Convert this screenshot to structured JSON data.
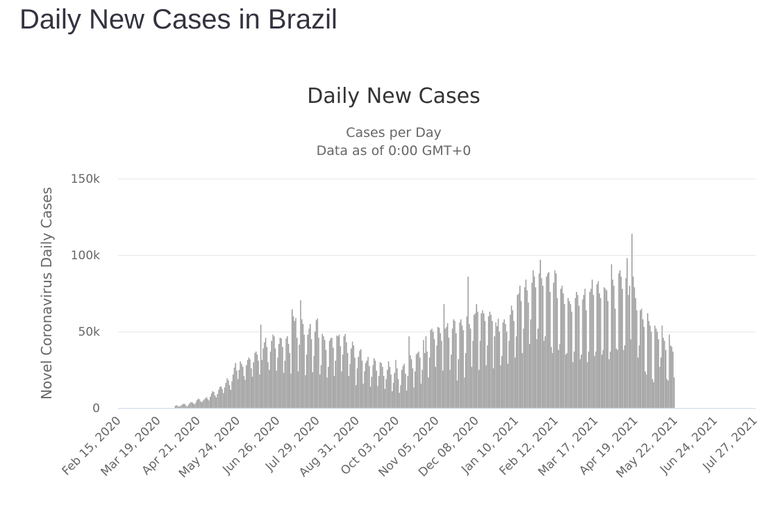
{
  "page": {
    "heading": "Daily New Cases in Brazil"
  },
  "chart_data": {
    "type": "bar",
    "title": "Daily New Cases",
    "subtitle": [
      "Cases per Day",
      "Data as of 0:00 GMT+0"
    ],
    "ylabel": "Novel Coronavirus Daily Cases",
    "xlabel": "",
    "ylim": [
      0,
      150000
    ],
    "yticks": [
      {
        "value": 0,
        "label": "0"
      },
      {
        "value": 50000,
        "label": "50k"
      },
      {
        "value": 100000,
        "label": "100k"
      },
      {
        "value": 150000,
        "label": "150k"
      }
    ],
    "xticks": [
      {
        "day": 0,
        "label": "Feb 15, 2020"
      },
      {
        "day": 33,
        "label": "Mar 19, 2020"
      },
      {
        "day": 66,
        "label": "Apr 21, 2020"
      },
      {
        "day": 99,
        "label": "May 24, 2020"
      },
      {
        "day": 132,
        "label": "Jun 26, 2020"
      },
      {
        "day": 165,
        "label": "Jul 29, 2020"
      },
      {
        "day": 198,
        "label": "Aug 31, 2020"
      },
      {
        "day": 231,
        "label": "Oct 03, 2020"
      },
      {
        "day": 264,
        "label": "Nov 05, 2020"
      },
      {
        "day": 297,
        "label": "Dec 08, 2020"
      },
      {
        "day": 330,
        "label": "Jan 10, 2021"
      },
      {
        "day": 363,
        "label": "Feb 12, 2021"
      },
      {
        "day": 396,
        "label": "Mar 17, 2021"
      },
      {
        "day": 429,
        "label": "Apr 19, 2021"
      },
      {
        "day": 462,
        "label": "May 22, 2021"
      },
      {
        "day": 495,
        "label": "Jun 24, 2021"
      },
      {
        "day": 528,
        "label": "Jul 27, 2021"
      }
    ],
    "start_date": "Feb 15, 2020",
    "day_count": 529,
    "series": [
      {
        "name": "Daily Cases",
        "color": "#999999",
        "values": [
          0,
          0,
          0,
          0,
          0,
          0,
          0,
          0,
          0,
          0,
          0,
          0,
          0,
          0,
          0,
          0,
          0,
          0,
          0,
          0,
          0,
          0,
          0,
          0,
          0,
          0,
          0,
          0,
          0,
          0,
          0,
          0,
          0,
          0,
          0,
          0,
          0,
          0,
          0,
          0,
          0,
          0,
          0,
          0,
          0,
          0,
          0,
          1500,
          2000,
          1400,
          1000,
          1200,
          1800,
          2500,
          2800,
          2600,
          1500,
          1100,
          2100,
          3200,
          4000,
          3800,
          3000,
          2500,
          3500,
          5200,
          6100,
          5800,
          4500,
          3800,
          4800,
          5600,
          6500,
          7200,
          5900,
          5000,
          7400,
          9500,
          11000,
          10500,
          8200,
          6900,
          9200,
          12000,
          13800,
          14200,
          12500,
          9800,
          13500,
          16500,
          19500,
          18200,
          15000,
          12000,
          17500,
          22000,
          26500,
          29500,
          24500,
          19000,
          25000,
          30500,
          29000,
          27000,
          21000,
          18500,
          28000,
          31500,
          33000,
          32000,
          26000,
          20500,
          30000,
          36000,
          37000,
          35000,
          31000,
          22000,
          54500,
          31500,
          39000,
          43000,
          46000,
          40000,
          30000,
          25000,
          37000,
          44000,
          48000,
          47000,
          39000,
          24500,
          33000,
          42000,
          46000,
          45500,
          40000,
          23000,
          31000,
          45500,
          47000,
          42000,
          36000,
          22500,
          64500,
          60000,
          57000,
          59000,
          46000,
          24000,
          41500,
          70500,
          58000,
          55000,
          48000,
          21500,
          35000,
          48000,
          52000,
          55000,
          45000,
          23500,
          34000,
          50000,
          57500,
          58500,
          46000,
          22000,
          28000,
          48500,
          47000,
          44500,
          38000,
          20000,
          27000,
          44000,
          45500,
          46000,
          39500,
          21000,
          31000,
          47500,
          47000,
          48000,
          40500,
          24000,
          35000,
          47000,
          48500,
          43000,
          36000,
          21000,
          29000,
          39000,
          43500,
          41000,
          33000,
          15000,
          26000,
          33500,
          37500,
          38500,
          31000,
          16000,
          24000,
          29500,
          31000,
          33500,
          27500,
          14000,
          20500,
          28000,
          32500,
          31000,
          24500,
          14500,
          21000,
          30000,
          29500,
          27000,
          21000,
          12500,
          19000,
          25000,
          30500,
          27000,
          22000,
          11000,
          16500,
          23000,
          31500,
          26000,
          19000,
          10000,
          15000,
          25000,
          27500,
          29000,
          22500,
          11500,
          21000,
          47000,
          34500,
          32000,
          26000,
          13500,
          24000,
          35000,
          36000,
          37000,
          33000,
          16000,
          25000,
          44500,
          36000,
          47000,
          37000,
          20000,
          33000,
          51000,
          52000,
          50000,
          45000,
          27000,
          41000,
          53000,
          52500,
          49000,
          44000,
          24500,
          68000,
          52000,
          53000,
          55500,
          46000,
          25000,
          35000,
          52000,
          58000,
          57000,
          49000,
          18000,
          32000,
          56000,
          58000,
          54000,
          51000,
          20000,
          36000,
          60000,
          86000,
          55000,
          52000,
          27000,
          44000,
          61000,
          62000,
          68000,
          63000,
          25000,
          44000,
          62000,
          64000,
          62000,
          57000,
          28000,
          41000,
          60000,
          63000,
          61000,
          57000,
          26000,
          47000,
          56000,
          53500,
          58500,
          50000,
          28000,
          34000,
          56000,
          58000,
          55000,
          50000,
          29000,
          44000,
          61000,
          67000,
          64000,
          57000,
          33000,
          47000,
          74000,
          75000,
          80000,
          70000,
          36000,
          52000,
          79000,
          84000,
          77000,
          69000,
          42000,
          58000,
          82000,
          90000,
          86000,
          79000,
          45000,
          52000,
          88000,
          97000,
          85000,
          80000,
          44000,
          47000,
          86000,
          88000,
          89000,
          76000,
          40000,
          36000,
          82000,
          90000,
          88000,
          72000,
          38000,
          42000,
          78000,
          80000,
          75000,
          68000,
          35000,
          36000,
          72000,
          70000,
          68000,
          63000,
          30000,
          37000,
          72000,
          76000,
          74000,
          67000,
          32000,
          35000,
          71000,
          74000,
          78000,
          64000,
          30000,
          37000,
          76000,
          78000,
          84000,
          74000,
          34000,
          37000,
          81000,
          83000,
          75000,
          72000,
          35000,
          38000,
          79000,
          78000,
          77000,
          70000,
          32000,
          37000,
          94000,
          84000,
          80000,
          65000,
          39000,
          38000,
          88000,
          90000,
          86000,
          78000,
          38000,
          41000,
          85000,
          98000,
          74000,
          80000,
          45000,
          114000,
          86000,
          79000,
          72000,
          64000,
          33000,
          41000,
          64000,
          65000,
          58000,
          53000,
          24000,
          22000,
          62000,
          57000,
          54000,
          50000,
          19000,
          17000,
          54000,
          52000,
          50000,
          45000,
          27000,
          33000,
          54000,
          46000,
          44000,
          38000,
          19000,
          18000,
          48000,
          41000,
          40000,
          37000,
          20000
        ]
      }
    ]
  }
}
